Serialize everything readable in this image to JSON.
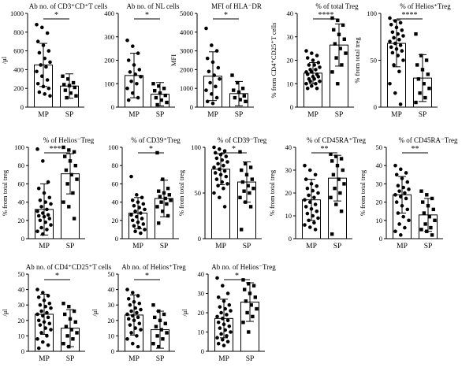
{
  "chart_data": [
    {
      "type": "bar",
      "title": "Ab no. of CD3⁺CD⁺T cells",
      "ylabel": "/μl",
      "categories": [
        "MP",
        "SP"
      ],
      "values": [
        450,
        225
      ],
      "errors": [
        230,
        130
      ],
      "ylim": [
        0,
        1000
      ],
      "yticks": [
        0,
        200,
        400,
        600,
        800,
        1000
      ],
      "significance": "*",
      "points": [
        [
          880,
          850,
          790,
          700,
          660,
          600,
          580,
          520,
          480,
          450,
          430,
          380,
          330,
          290,
          250,
          220,
          200,
          160,
          140,
          120
        ],
        [
          330,
          300,
          260,
          240,
          230,
          210,
          180,
          150,
          120,
          100
        ]
      ]
    },
    {
      "type": "bar",
      "title": "Ab no. of NL cells",
      "ylabel": "",
      "categories": [
        "MP",
        "SP"
      ],
      "values": [
        135,
        55
      ],
      "errors": [
        95,
        50
      ],
      "ylim": [
        0,
        400
      ],
      "yticks": [
        0,
        100,
        200,
        300,
        400
      ],
      "significance": "*",
      "points": [
        [
          285,
          260,
          230,
          200,
          180,
          160,
          150,
          140,
          130,
          110,
          100,
          80,
          60,
          40,
          30
        ],
        [
          100,
          90,
          80,
          70,
          60,
          50,
          40,
          30,
          20,
          10
        ]
      ]
    },
    {
      "type": "bar",
      "title": "MFI of HLA⁻DR",
      "ylabel": "MFI",
      "categories": [
        "MP",
        "SP"
      ],
      "values": [
        1650,
        720
      ],
      "errors": [
        1300,
        650
      ],
      "ylim": [
        0,
        5000
      ],
      "yticks": [
        0,
        1000,
        2000,
        3000,
        4000,
        5000
      ],
      "significance": "*",
      "points": [
        [
          4200,
          3300,
          3000,
          2600,
          2400,
          2100,
          1900,
          1700,
          1500,
          1300,
          1100,
          900,
          700,
          500,
          300,
          200
        ],
        [
          1700,
          1300,
          1000,
          900,
          800,
          600,
          500,
          400,
          300
        ]
      ]
    },
    {
      "type": "bar",
      "title": "% of total Treg",
      "ylabel": "% from CD4⁺CD25⁺T cells",
      "categories": [
        "MP",
        "SP"
      ],
      "values": [
        14.5,
        26.5
      ],
      "errors": [
        4.5,
        9
      ],
      "ylim": [
        0,
        40
      ],
      "yticks": [
        0,
        10,
        20,
        30,
        40
      ],
      "significance": "****",
      "points": [
        [
          24,
          23,
          22,
          21,
          20,
          19,
          18,
          18,
          17,
          16,
          16,
          15,
          15,
          14,
          14,
          13,
          13,
          12,
          12,
          11,
          11,
          10,
          10,
          9,
          8,
          8
        ],
        [
          38,
          37,
          35,
          33,
          31,
          29,
          27,
          25,
          23,
          21,
          18,
          15,
          10
        ]
      ]
    },
    {
      "type": "bar",
      "title": "% of Helios⁺Treg",
      "ylabel": "% from total treg",
      "categories": [
        "MP",
        "SP"
      ],
      "values": [
        68,
        31
      ],
      "errors": [
        25,
        25
      ],
      "ylim": [
        0,
        100
      ],
      "yticks": [
        0,
        50,
        100
      ],
      "significance": "****",
      "points": [
        [
          95,
          92,
          90,
          88,
          85,
          82,
          80,
          78,
          76,
          74,
          72,
          70,
          68,
          66,
          64,
          62,
          60,
          58,
          55,
          50,
          45,
          38,
          25,
          15,
          3
        ],
        [
          78,
          55,
          50,
          45,
          40,
          35,
          30,
          25,
          20,
          15,
          10,
          5
        ]
      ]
    },
    {
      "type": "bar",
      "title": "% of Helios⁻Treg",
      "ylabel": "% from total treg",
      "categories": [
        "MP",
        "SP"
      ],
      "values": [
        32,
        71
      ],
      "errors": [
        28,
        22
      ],
      "ylim": [
        0,
        100
      ],
      "yticks": [
        0,
        20,
        40,
        60,
        80,
        100
      ],
      "significance": "****",
      "points": [
        [
          98,
          85,
          62,
          55,
          50,
          45,
          42,
          40,
          38,
          35,
          32,
          30,
          28,
          26,
          25,
          24,
          22,
          20,
          18,
          15,
          12,
          10,
          8,
          5
        ],
        [
          100,
          97,
          95,
          90,
          85,
          80,
          75,
          70,
          65,
          60,
          50,
          40,
          35,
          22
        ]
      ]
    },
    {
      "type": "bar",
      "title": "% of CD39⁺Treg",
      "ylabel": "",
      "categories": [
        "MP",
        "SP"
      ],
      "values": [
        28,
        44
      ],
      "errors": [
        17,
        20
      ],
      "ylim": [
        0,
        100
      ],
      "yticks": [
        0,
        20,
        40,
        60,
        80,
        100
      ],
      "significance": "*",
      "points": [
        [
          68,
          48,
          45,
          42,
          40,
          38,
          36,
          34,
          32,
          30,
          28,
          26,
          24,
          22,
          20,
          18,
          16,
          14,
          12,
          10,
          8,
          6
        ],
        [
          94,
          65,
          55,
          52,
          50,
          48,
          46,
          44,
          42,
          40,
          38,
          35,
          30,
          25,
          17
        ]
      ]
    },
    {
      "type": "bar",
      "title": "% of CD39⁻Treg",
      "ylabel": "% from total treg",
      "categories": [
        "MP",
        "SP"
      ],
      "values": [
        76,
        62
      ],
      "errors": [
        17,
        22
      ],
      "ylim": [
        0,
        100
      ],
      "yticks": [
        0,
        50,
        100
      ],
      "significance": "*",
      "points": [
        [
          100,
          98,
          96,
          94,
          92,
          90,
          88,
          86,
          84,
          82,
          80,
          78,
          76,
          74,
          72,
          70,
          68,
          65,
          62,
          60,
          58,
          55,
          50,
          45,
          35
        ],
        [
          95,
          82,
          78,
          75,
          70,
          65,
          62,
          58,
          55,
          52,
          50,
          45,
          40,
          35,
          10
        ]
      ]
    },
    {
      "type": "bar",
      "title": "% of CD45RA⁺Treg",
      "ylabel": "% from total treg",
      "categories": [
        "MP",
        "SP"
      ],
      "values": [
        17,
        26.5
      ],
      "errors": [
        9,
        10
      ],
      "ylim": [
        0,
        40
      ],
      "yticks": [
        0,
        10,
        20,
        30,
        40
      ],
      "significance": "**",
      "points": [
        [
          32,
          30,
          28,
          26,
          24,
          23,
          22,
          21,
          20,
          19,
          18,
          17,
          16,
          15,
          14,
          13,
          12,
          11,
          10,
          9,
          8,
          7,
          6,
          5,
          4
        ],
        [
          37,
          36,
          35,
          34,
          32,
          30,
          28,
          26,
          24,
          22,
          20,
          18,
          15,
          12,
          2
        ]
      ]
    },
    {
      "type": "bar",
      "title": "% of CD45RA⁻Treg",
      "ylabel": "% from total treg",
      "categories": [
        "MP",
        "SP"
      ],
      "values": [
        24,
        13
      ],
      "errors": [
        10,
        9
      ],
      "ylim": [
        0,
        50
      ],
      "yticks": [
        0,
        10,
        20,
        30,
        40,
        50
      ],
      "significance": "**",
      "points": [
        [
          40,
          38,
          36,
          35,
          33,
          31,
          29,
          28,
          27,
          26,
          25,
          24,
          23,
          22,
          20,
          18,
          16,
          14,
          12,
          10,
          8,
          6,
          4,
          2
        ],
        [
          26,
          24,
          22,
          20,
          18,
          16,
          14,
          12,
          10,
          8,
          6,
          5,
          4,
          2
        ]
      ]
    },
    {
      "type": "bar",
      "title": "Ab no. of CD4⁺CD25⁺T cells",
      "ylabel": "/μl",
      "categories": [
        "MP",
        "SP"
      ],
      "values": [
        24,
        15
      ],
      "errors": [
        13,
        12
      ],
      "ylim": [
        0,
        50
      ],
      "yticks": [
        0,
        10,
        20,
        30,
        40,
        50
      ],
      "significance": "*",
      "points": [
        [
          40,
          38,
          36,
          35,
          33,
          31,
          30,
          29,
          28,
          26,
          25,
          24,
          23,
          22,
          20,
          19,
          18,
          17,
          15,
          14,
          12,
          10,
          8,
          6,
          4,
          2
        ],
        [
          31,
          29,
          26,
          24,
          21,
          19,
          16,
          14,
          12,
          10,
          8,
          5,
          3
        ]
      ]
    },
    {
      "type": "bar",
      "title": "Ab no. of Helios⁺Treg",
      "ylabel": "/μl",
      "categories": [
        "MP",
        "SP"
      ],
      "values": [
        23.5,
        14
      ],
      "errors": [
        13,
        12
      ],
      "ylim": [
        0,
        50
      ],
      "yticks": [
        0,
        10,
        20,
        30,
        40,
        50
      ],
      "significance": "*",
      "points": [
        [
          40,
          38,
          36,
          34,
          32,
          31,
          30,
          28,
          27,
          26,
          25,
          24,
          23,
          22,
          21,
          20,
          18,
          17,
          15,
          14,
          12,
          10,
          8,
          5,
          3
        ],
        [
          30,
          26,
          24,
          22,
          20,
          18,
          16,
          14,
          12,
          10,
          8,
          5,
          3
        ]
      ]
    },
    {
      "type": "bar",
      "title": "Ab no. of Helios⁻Treg",
      "ylabel": "/μl",
      "categories": [
        "MP",
        "SP"
      ],
      "values": [
        17,
        25.5
      ],
      "errors": [
        10,
        10
      ],
      "ylim": [
        0,
        40
      ],
      "yticks": [
        0,
        10,
        20,
        30,
        40
      ],
      "significance": "*",
      "points": [
        [
          38,
          34,
          30,
          28,
          26,
          24,
          23,
          22,
          21,
          20,
          19,
          18,
          17,
          16,
          15,
          14,
          13,
          12,
          11,
          10,
          9,
          8,
          7,
          6,
          5,
          4,
          3
        ],
        [
          37,
          35,
          34,
          32,
          30,
          28,
          26,
          24,
          22,
          20,
          18,
          15,
          10
        ]
      ]
    }
  ]
}
